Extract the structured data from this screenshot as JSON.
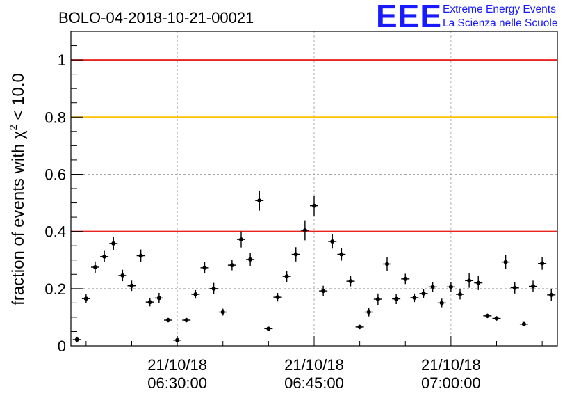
{
  "chart_data": {
    "type": "scatter",
    "title": "BOLO-04-2018-10-21-00021",
    "ylabel_prefix": "fraction of events with χ",
    "ylabel_sup": "2",
    "ylabel_suffix": " < 10.0",
    "xlabel": "",
    "ylim": [
      0,
      1.1
    ],
    "y_ticks": [
      "0",
      "0.2",
      "0.4",
      "0.6",
      "0.8",
      "1"
    ],
    "x_ticks": [
      {
        "x": "06:30:00",
        "line1": "21/10/18",
        "line2": "06:30:00"
      },
      {
        "x": "06:45:00",
        "line1": "21/10/18",
        "line2": "06:45:00"
      },
      {
        "x": "07:00:00",
        "line1": "21/10/18",
        "line2": "07:00:00"
      }
    ],
    "xlim": [
      "06:18:20",
      "07:11:40"
    ],
    "grid": true,
    "reference_lines": [
      {
        "y": 1.0,
        "color": "#e8221c"
      },
      {
        "y": 0.8,
        "color": "#ffc000"
      },
      {
        "y": 0.4,
        "color": "#e8221c"
      }
    ],
    "point_color": "#000000",
    "series": [
      {
        "x": [
          "06:19:00",
          "06:20:00",
          "06:21:00",
          "06:22:00",
          "06:23:00",
          "06:24:00",
          "06:25:00",
          "06:26:00",
          "06:27:00",
          "06:28:00",
          "06:29:00",
          "06:30:00",
          "06:31:00",
          "06:32:00",
          "06:33:00",
          "06:34:00",
          "06:35:00",
          "06:36:00",
          "06:37:00",
          "06:38:00",
          "06:39:00",
          "06:40:00",
          "06:41:00",
          "06:42:00",
          "06:43:00",
          "06:44:00",
          "06:45:00",
          "06:46:00",
          "06:47:00",
          "06:48:00",
          "06:49:00",
          "06:50:00",
          "06:51:00",
          "06:52:00",
          "06:53:00",
          "06:54:00",
          "06:55:00",
          "06:56:00",
          "06:57:00",
          "06:58:00",
          "06:59:00",
          "07:00:00",
          "07:01:00",
          "07:02:00",
          "07:03:00",
          "07:04:00",
          "07:05:00",
          "07:06:00",
          "07:07:00",
          "07:08:00",
          "07:09:00",
          "07:10:00",
          "07:11:00"
        ],
        "y": [
          0.022,
          0.165,
          0.275,
          0.312,
          0.358,
          0.246,
          0.21,
          0.315,
          0.153,
          0.167,
          0.09,
          0.02,
          0.09,
          0.18,
          0.273,
          0.2,
          0.118,
          0.282,
          0.372,
          0.302,
          0.508,
          0.06,
          0.17,
          0.243,
          0.32,
          0.404,
          0.49,
          0.192,
          0.365,
          0.32,
          0.226,
          0.066,
          0.118,
          0.163,
          0.286,
          0.164,
          0.234,
          0.168,
          0.183,
          0.206,
          0.15,
          0.206,
          0.18,
          0.228,
          0.22,
          0.105,
          0.096,
          0.293,
          0.203,
          0.076,
          0.208,
          0.288,
          0.178
        ],
        "err": [
          0.01,
          0.015,
          0.02,
          0.02,
          0.022,
          0.02,
          0.018,
          0.022,
          0.015,
          0.018,
          0.008,
          0.008,
          0.008,
          0.015,
          0.02,
          0.02,
          0.012,
          0.018,
          0.028,
          0.022,
          0.035,
          0.006,
          0.015,
          0.02,
          0.025,
          0.035,
          0.035,
          0.018,
          0.025,
          0.022,
          0.018,
          0.008,
          0.015,
          0.02,
          0.025,
          0.018,
          0.018,
          0.015,
          0.015,
          0.018,
          0.015,
          0.018,
          0.018,
          0.025,
          0.025,
          0.008,
          0.008,
          0.025,
          0.02,
          0.008,
          0.02,
          0.022,
          0.02
        ]
      }
    ]
  },
  "logo": {
    "mark": "EEE",
    "line1": "Extreme Energy Events",
    "line2": "La Scienza nelle Scuole"
  }
}
